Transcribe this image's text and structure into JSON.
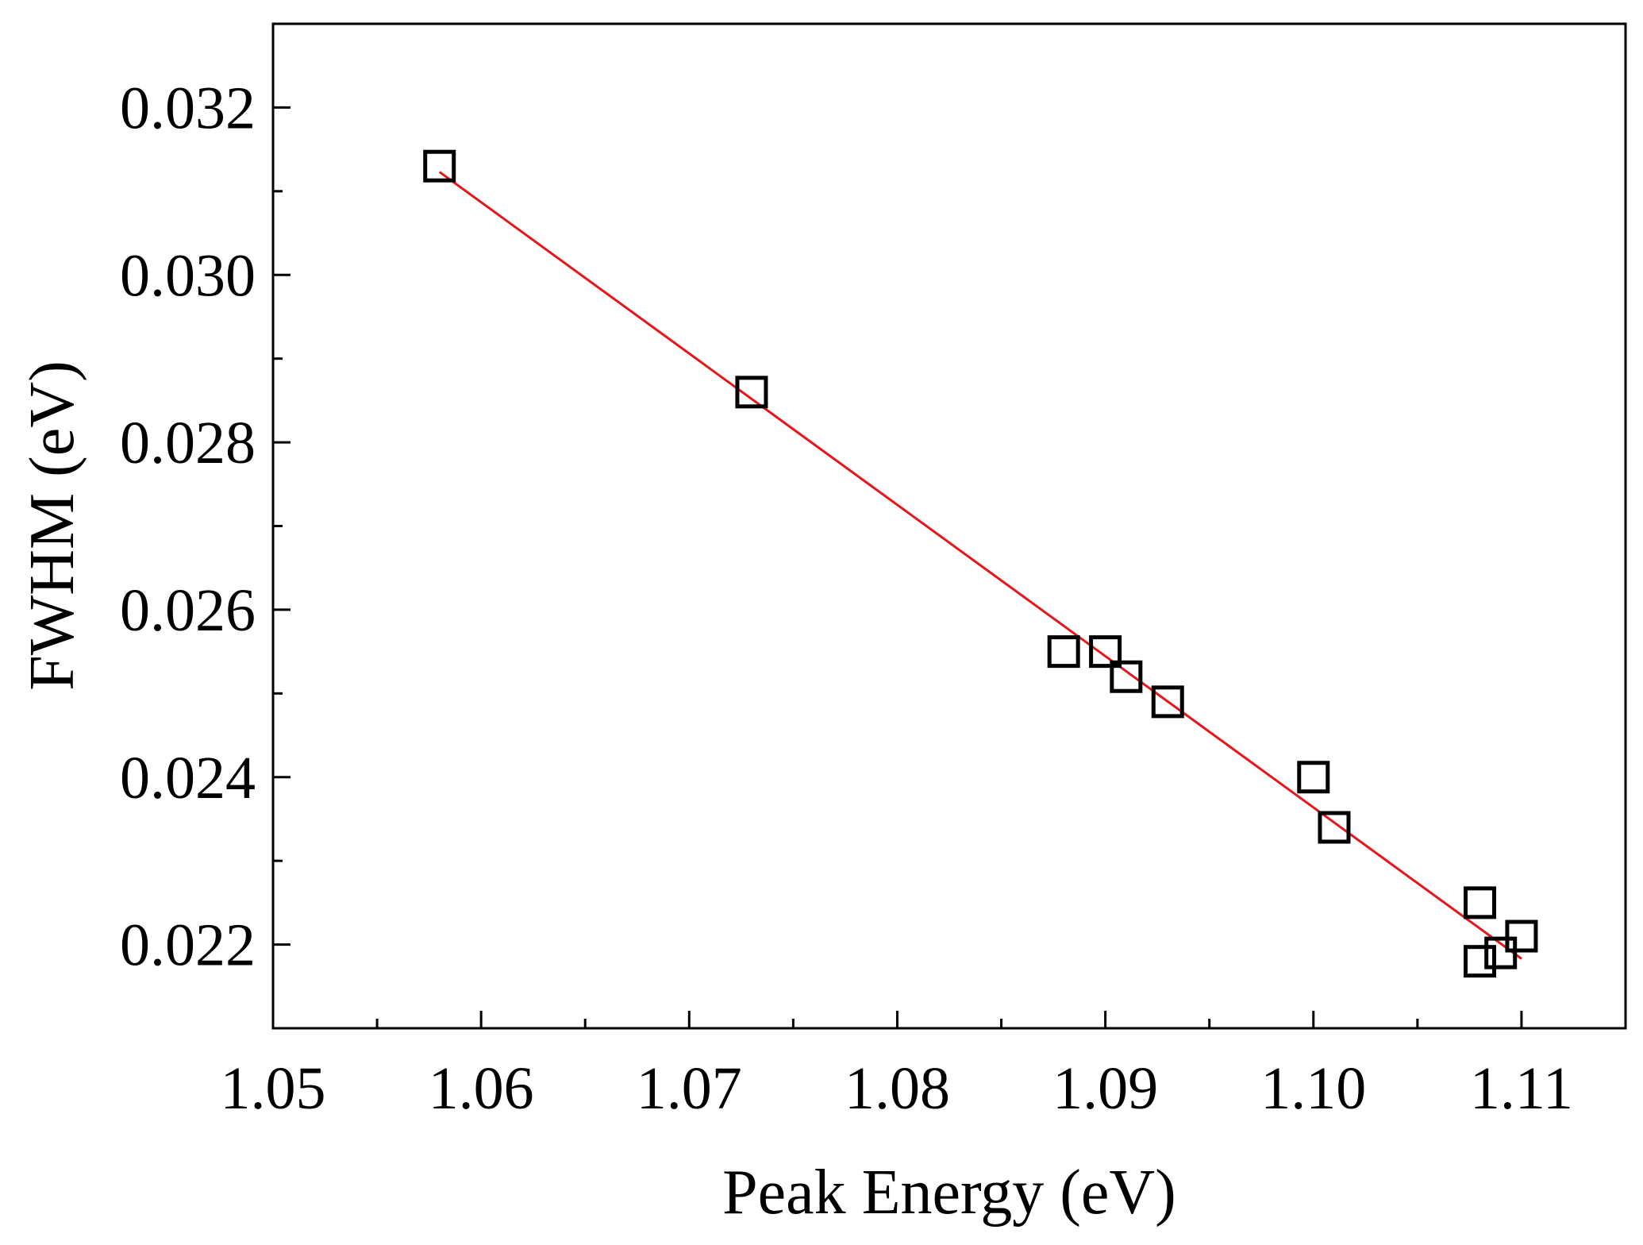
{
  "chart_data": {
    "type": "scatter",
    "title": "",
    "xlabel": "Peak Energy (eV)",
    "ylabel": "FWHM (eV)",
    "xlim": [
      1.05,
      1.115
    ],
    "ylim": [
      0.021,
      0.033
    ],
    "x_ticks": [
      1.05,
      1.06,
      1.07,
      1.08,
      1.09,
      1.1,
      1.11
    ],
    "x_tick_labels": [
      "1.05",
      "1.06",
      "1.07",
      "1.08",
      "1.09",
      "1.10",
      "1.11"
    ],
    "y_ticks": [
      0.022,
      0.024,
      0.026,
      0.028,
      0.03,
      0.032
    ],
    "y_tick_labels": [
      "0.022",
      "0.024",
      "0.026",
      "0.028",
      "0.030",
      "0.032"
    ],
    "grid": false,
    "legend": "none",
    "points": [
      {
        "x": 1.058,
        "y": 0.0313
      },
      {
        "x": 1.073,
        "y": 0.0286
      },
      {
        "x": 1.088,
        "y": 0.0255
      },
      {
        "x": 1.09,
        "y": 0.0255
      },
      {
        "x": 1.091,
        "y": 0.0252
      },
      {
        "x": 1.093,
        "y": 0.0249
      },
      {
        "x": 1.1,
        "y": 0.024
      },
      {
        "x": 1.101,
        "y": 0.0234
      },
      {
        "x": 1.108,
        "y": 0.0225
      },
      {
        "x": 1.108,
        "y": 0.0218
      },
      {
        "x": 1.109,
        "y": 0.0219
      },
      {
        "x": 1.11,
        "y": 0.0221
      }
    ],
    "fit_line": {
      "x": [
        1.058,
        1.11
      ],
      "y": [
        0.03123,
        0.02183
      ]
    },
    "marker": "open-square",
    "marker_color": "#000000",
    "fit_color": "#e8141b"
  }
}
